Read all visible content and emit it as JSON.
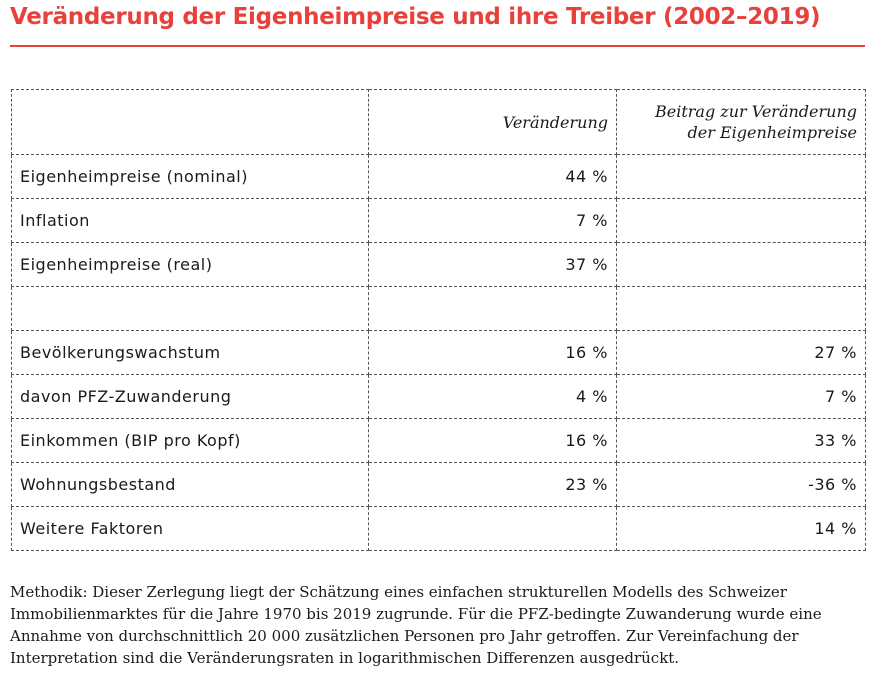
{
  "title": "Veränderung der Eigenheimpreise und ihre Treiber (2002–2019)",
  "table": {
    "headers": {
      "label": "",
      "change": "Veränderung",
      "contribution_line1": "Beitrag zur Veränderung",
      "contribution_line2": "der Eigenheimpreise"
    },
    "rows": [
      {
        "label": "Eigenheimpreise (nominal)",
        "change": "44 %",
        "contribution": ""
      },
      {
        "label": "Inflation",
        "change": "7 %",
        "contribution": ""
      },
      {
        "label": "Eigenheimpreise (real)",
        "change": "37 %",
        "contribution": ""
      },
      {
        "label": "",
        "change": "",
        "contribution": ""
      },
      {
        "label": "Bevölkerungswachstum",
        "change": "16 %",
        "contribution": "27 %"
      },
      {
        "label": "davon PFZ-Zuwanderung",
        "change": "4 %",
        "contribution": "7 %"
      },
      {
        "label": "Einkommen (BIP pro Kopf)",
        "change": "16 %",
        "contribution": "33 %"
      },
      {
        "label": "Wohnungsbestand",
        "change": "23 %",
        "contribution": "-36 %"
      },
      {
        "label": "Weitere Faktoren",
        "change": "",
        "contribution": "14 %"
      }
    ]
  },
  "note": "Methodik: Dieser Zerlegung liegt der Schätzung eines einfachen strukturellen Modells des Schweizer Immobilienmarktes für die Jahre 1970 bis 2019 zugrunde. Für die PFZ-bedingte Zuwanderung wurde eine Annahme von durchschnittlich 20 000 zusätzlichen Personen pro Jahr getroffen. Zur Vereinfachung der Interpretation sind die Veränderungsraten in logarithmischen Differenzen ausgedrückt.",
  "colors": {
    "accent": "#e8413b",
    "text": "#1a1a1a",
    "border": "#555555"
  }
}
